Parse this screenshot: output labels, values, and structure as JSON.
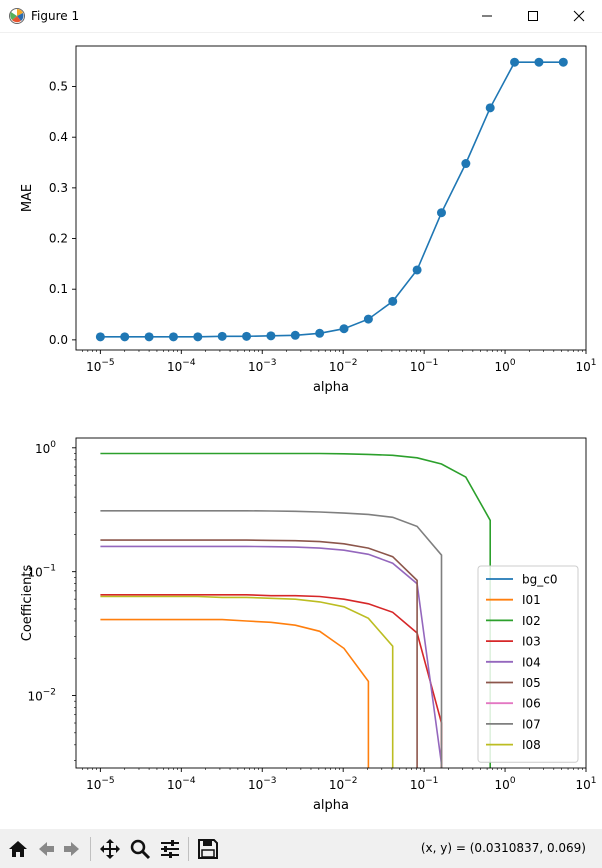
{
  "window": {
    "title": "Figure 1"
  },
  "toolbar": {
    "coords": "(x, y) = (0.0310837, 0.069)"
  },
  "colors": {
    "line": "#1f77b4"
  },
  "chart_data": [
    {
      "type": "line",
      "xscale": "log",
      "xlabel": "alpha",
      "ylabel": "MAE",
      "xlim": [
        5e-06,
        10.0
      ],
      "ylim": [
        -0.02,
        0.58
      ],
      "xticks": [
        1e-05,
        0.0001,
        0.001,
        0.01,
        0.1,
        1.0,
        10.0
      ],
      "xtick_labels": [
        {
          "base": "10",
          "exp": "−5"
        },
        {
          "base": "10",
          "exp": "−4"
        },
        {
          "base": "10",
          "exp": "−3"
        },
        {
          "base": "10",
          "exp": "−2"
        },
        {
          "base": "10",
          "exp": "−1"
        },
        {
          "base": "10",
          "exp": "0"
        },
        {
          "base": "10",
          "exp": "1"
        }
      ],
      "yticks": [
        0.0,
        0.1,
        0.2,
        0.3,
        0.4,
        0.5
      ],
      "ytick_labels": [
        "0.0",
        "0.1",
        "0.2",
        "0.3",
        "0.4",
        "0.5"
      ],
      "grid": false,
      "series": [
        {
          "color": "#1f77b4",
          "marker": "circle",
          "x": [
            1e-05,
            2e-05,
            4e-05,
            8e-05,
            0.00016,
            0.00032,
            0.00064,
            0.00128,
            0.00256,
            0.00512,
            0.01024,
            0.02048,
            0.04096,
            0.08192,
            0.16384,
            0.32768,
            0.65536,
            1.31072,
            2.62144,
            5.24288
          ],
          "y": [
            0.006,
            0.006,
            0.006,
            0.006,
            0.006,
            0.007,
            0.007,
            0.008,
            0.009,
            0.013,
            0.022,
            0.041,
            0.076,
            0.138,
            0.251,
            0.348,
            0.458,
            0.548,
            0.548,
            0.548
          ]
        }
      ]
    },
    {
      "type": "line",
      "xscale": "log",
      "yscale": "log",
      "xlabel": "alpha",
      "ylabel": "Coefficients",
      "xlim": [
        5e-06,
        10.0
      ],
      "ylim": [
        0.0026,
        1.2
      ],
      "xticks": [
        1e-05,
        0.0001,
        0.001,
        0.01,
        0.1,
        1.0,
        10.0
      ],
      "xtick_labels": [
        {
          "base": "10",
          "exp": "−5"
        },
        {
          "base": "10",
          "exp": "−4"
        },
        {
          "base": "10",
          "exp": "−3"
        },
        {
          "base": "10",
          "exp": "−2"
        },
        {
          "base": "10",
          "exp": "−1"
        },
        {
          "base": "10",
          "exp": "0"
        },
        {
          "base": "10",
          "exp": "1"
        }
      ],
      "yticks": [
        0.01,
        0.1,
        1
      ],
      "ytick_labels": [
        {
          "base": "10",
          "exp": "−2"
        },
        {
          "base": "10",
          "exp": "−1"
        },
        {
          "base": "10",
          "exp": "0"
        }
      ],
      "legend": "center-right",
      "grid": false,
      "series": [
        {
          "name": "bg_c0",
          "color": "#1f77b4",
          "x": [],
          "y": []
        },
        {
          "name": "I01",
          "color": "#ff7f0e",
          "x": [
            1e-05,
            2e-05,
            4e-05,
            8e-05,
            0.00016,
            0.00032,
            0.00064,
            0.00128,
            0.00256,
            0.00512,
            0.01024,
            0.02048,
            0.02048
          ],
          "y": [
            0.041,
            0.041,
            0.041,
            0.041,
            0.041,
            0.041,
            0.04,
            0.039,
            0.037,
            0.033,
            0.024,
            0.013,
            0.0026
          ]
        },
        {
          "name": "I02",
          "color": "#2ca02c",
          "x": [
            1e-05,
            2e-05,
            4e-05,
            8e-05,
            0.00016,
            0.00032,
            0.00064,
            0.00128,
            0.00256,
            0.00512,
            0.01024,
            0.02048,
            0.04096,
            0.08192,
            0.16384,
            0.32768,
            0.65536,
            0.65536
          ],
          "y": [
            0.9,
            0.9,
            0.9,
            0.9,
            0.9,
            0.9,
            0.9,
            0.9,
            0.9,
            0.9,
            0.895,
            0.885,
            0.87,
            0.83,
            0.74,
            0.58,
            0.26,
            0.0026
          ]
        },
        {
          "name": "I03",
          "color": "#d62728",
          "x": [
            1e-05,
            2e-05,
            4e-05,
            8e-05,
            0.00016,
            0.00032,
            0.00064,
            0.00128,
            0.00256,
            0.00512,
            0.01024,
            0.02048,
            0.04096,
            0.08192,
            0.16384,
            0.16384
          ],
          "y": [
            0.065,
            0.065,
            0.065,
            0.065,
            0.065,
            0.065,
            0.065,
            0.064,
            0.064,
            0.063,
            0.06,
            0.055,
            0.047,
            0.032,
            0.006,
            0.0026
          ]
        },
        {
          "name": "I04",
          "color": "#9467bd",
          "x": [
            1e-05,
            2e-05,
            4e-05,
            8e-05,
            0.00016,
            0.00032,
            0.00064,
            0.00128,
            0.00256,
            0.00512,
            0.01024,
            0.02048,
            0.04096,
            0.08192,
            0.16384
          ],
          "y": [
            0.16,
            0.16,
            0.16,
            0.16,
            0.16,
            0.16,
            0.16,
            0.159,
            0.158,
            0.155,
            0.149,
            0.138,
            0.117,
            0.08,
            0.0028
          ]
        },
        {
          "name": "I05",
          "color": "#8c564b",
          "x": [
            1e-05,
            2e-05,
            4e-05,
            8e-05,
            0.00016,
            0.00032,
            0.00064,
            0.00128,
            0.00256,
            0.00512,
            0.01024,
            0.02048,
            0.04096,
            0.08192,
            0.08192
          ],
          "y": [
            0.18,
            0.18,
            0.18,
            0.18,
            0.18,
            0.18,
            0.18,
            0.179,
            0.178,
            0.175,
            0.168,
            0.155,
            0.132,
            0.085,
            0.0026
          ]
        },
        {
          "name": "I06",
          "color": "#e377c2",
          "x": [
            0.16384,
            0.16384
          ],
          "y": [
            0.004,
            0.003
          ]
        },
        {
          "name": "I07",
          "color": "#7f7f7f",
          "x": [
            1e-05,
            2e-05,
            4e-05,
            8e-05,
            0.00016,
            0.00032,
            0.00064,
            0.00128,
            0.00256,
            0.00512,
            0.01024,
            0.02048,
            0.04096,
            0.08192,
            0.16384,
            0.16384
          ],
          "y": [
            0.31,
            0.31,
            0.31,
            0.31,
            0.31,
            0.31,
            0.31,
            0.309,
            0.307,
            0.303,
            0.297,
            0.29,
            0.275,
            0.232,
            0.136,
            0.0026
          ]
        },
        {
          "name": "I08",
          "color": "#bcbd22",
          "x": [
            1e-05,
            2e-05,
            4e-05,
            8e-05,
            0.00016,
            0.00032,
            0.00064,
            0.00128,
            0.00256,
            0.00512,
            0.01024,
            0.02048,
            0.04096,
            0.04096
          ],
          "y": [
            0.063,
            0.063,
            0.063,
            0.063,
            0.063,
            0.062,
            0.062,
            0.061,
            0.06,
            0.057,
            0.052,
            0.042,
            0.025,
            0.0026
          ]
        }
      ]
    }
  ]
}
